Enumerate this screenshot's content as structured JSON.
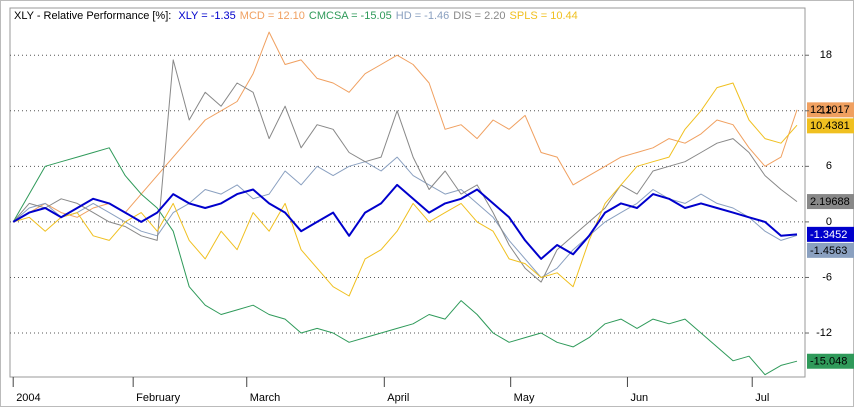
{
  "chart_data": {
    "type": "line",
    "title": "XLY - Relative Performance [%]:",
    "x": [
      0,
      1,
      2,
      3,
      4,
      5,
      6,
      7,
      8,
      9,
      10,
      11,
      12,
      13,
      14,
      15,
      16,
      17,
      18,
      19,
      20,
      21,
      22,
      23,
      24,
      25,
      26,
      27,
      28,
      29,
      30,
      31,
      32,
      33,
      34,
      35,
      36,
      37,
      38,
      39,
      40,
      41,
      42,
      43,
      44,
      45,
      46,
      47,
      48,
      49
    ],
    "xlim": [
      -0.2,
      49.5
    ],
    "xticks": [
      {
        "value": 0,
        "label": "2004"
      },
      {
        "value": 7.5,
        "label": "February"
      },
      {
        "value": 14.6,
        "label": "March"
      },
      {
        "value": 23.2,
        "label": "April"
      },
      {
        "value": 31.1,
        "label": "May"
      },
      {
        "value": 38.4,
        "label": "Jun"
      },
      {
        "value": 46.2,
        "label": "Jul"
      }
    ],
    "ylim": [
      -16.75,
      23.1
    ],
    "yticks": [
      -12,
      -6,
      0,
      6,
      12,
      18
    ],
    "grid": true,
    "series": [
      {
        "name": "XLY = -1.35",
        "color": "#0000cc",
        "end_label": "-1.3452",
        "values": [
          0,
          1,
          1.5,
          0.5,
          1.5,
          2.5,
          2,
          1,
          0,
          1,
          3,
          2,
          1.5,
          2,
          3,
          3.5,
          2,
          1,
          -1,
          0,
          1,
          -1.5,
          1,
          2,
          4,
          2.5,
          1,
          2,
          2.5,
          3.5,
          2,
          0.5,
          -2,
          -4,
          -2.5,
          -3.5,
          -1.5,
          1,
          2,
          1.5,
          3,
          2.5,
          1.5,
          2,
          1.5,
          1,
          0.5,
          0,
          -1.5,
          -1.3452
        ]
      },
      {
        "name": "MCD = 12.10",
        "color": "#f0a060",
        "end_label": "12.1017",
        "values": [
          0,
          1,
          2,
          1,
          0.5,
          1.5,
          2,
          1,
          3,
          5,
          7,
          9,
          11,
          12,
          13,
          16,
          20.5,
          17,
          17.5,
          15.5,
          15,
          14,
          16,
          17,
          18,
          17,
          15,
          10,
          10.5,
          9,
          11,
          10,
          11.5,
          7.5,
          7,
          4,
          5,
          6,
          7,
          7.5,
          8,
          9,
          8.5,
          9.5,
          11,
          10.5,
          8,
          6,
          7,
          12.1017
        ]
      },
      {
        "name": "CMCSA = -15.05",
        "color": "#2f9a5a",
        "end_label": "-15.048",
        "values": [
          0,
          3,
          6,
          6.5,
          7,
          7.5,
          8,
          5,
          3,
          1.5,
          -1,
          -7,
          -9,
          -10,
          -9.5,
          -9,
          -10,
          -10.5,
          -12,
          -11.5,
          -12,
          -13,
          -12.5,
          -12,
          -11.5,
          -11,
          -10,
          -10.5,
          -8.5,
          -10,
          -12,
          -13,
          -12.5,
          -12,
          -13,
          -13.5,
          -12.5,
          -11,
          -10.5,
          -11.5,
          -10.5,
          -11,
          -10.5,
          -12,
          -13.5,
          -15,
          -14.5,
          -16.5,
          -15.5,
          -15.048
        ]
      },
      {
        "name": "HD = -1.46",
        "color": "#8aa0c0",
        "end_label": "-1.4563",
        "values": [
          0,
          1.5,
          2,
          0.5,
          1,
          2,
          1,
          0,
          -1,
          -1.5,
          1,
          2,
          3.5,
          3,
          4,
          2.5,
          3,
          5.5,
          4,
          6,
          5,
          6,
          6.5,
          5.5,
          7,
          5,
          4,
          3,
          3.5,
          2,
          0.5,
          -2,
          -4,
          -6,
          -5,
          -3,
          -1.5,
          0,
          1,
          2,
          3.5,
          2.5,
          2,
          3,
          2,
          1.5,
          0.5,
          -1,
          -2,
          -1.4563
        ]
      },
      {
        "name": "DIS = 2.20",
        "color": "#888888",
        "end_label": "2.19688",
        "values": [
          0,
          2,
          1.5,
          2.5,
          2,
          1,
          0,
          -0.5,
          -1.5,
          -2,
          17.5,
          11,
          14,
          12.5,
          15,
          14,
          9,
          12.5,
          8,
          10.5,
          10,
          7.5,
          6.5,
          7,
          12,
          7,
          3.5,
          5.5,
          3,
          4,
          1,
          -2.5,
          -5,
          -6.5,
          -3,
          -1.5,
          0,
          1.5,
          4,
          3,
          5.5,
          6,
          6.5,
          7.5,
          8.5,
          9,
          7.5,
          5,
          3.5,
          2.19688
        ]
      },
      {
        "name": "SPLS = 10.44",
        "color": "#f0c020",
        "end_label": "10.4381",
        "values": [
          0,
          0.5,
          -1,
          0.5,
          1,
          -1.5,
          -2,
          0,
          1,
          -1,
          2,
          -2,
          -4,
          -1,
          -3,
          1,
          -1,
          2,
          -3,
          -5,
          -7,
          -8,
          -4,
          -3,
          -1,
          2,
          0,
          1,
          2,
          0,
          -1,
          -4,
          -4.5,
          -6,
          -5.5,
          -7,
          -2,
          2,
          4,
          6,
          6.5,
          7,
          10,
          12,
          14.5,
          15,
          11,
          9,
          8.5,
          10.4381
        ]
      }
    ]
  }
}
